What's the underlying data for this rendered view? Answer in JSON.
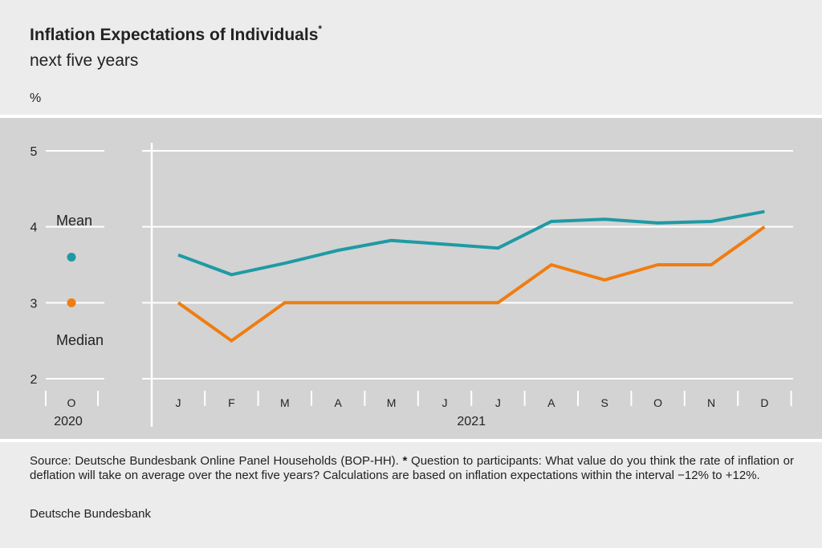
{
  "header": {
    "title": "Inflation Expectations of Individuals",
    "title_marker": "*",
    "subtitle": "next five years",
    "unit": "%"
  },
  "legend": {
    "mean_label": "Mean",
    "median_label": "Median"
  },
  "footnote": {
    "source": "Source: Deutsche Bundesbank Online Panel Households (BOP-HH).",
    "marker": "*",
    "text": "Question to participants: What value do you think the rate of inflation or deflation will take on average over the next five years? Calculations are based on inflation expectations within the interval −12% to +12%."
  },
  "credit": "Deutsche Bundesbank",
  "colors": {
    "mean": "#1f9aa5",
    "median": "#ef7d11",
    "panel": "#d3d3d3",
    "grid": "#ffffff"
  },
  "chart_data": {
    "type": "line",
    "title": "Inflation Expectations of Individuals",
    "subtitle": "next five years",
    "ylabel": "%",
    "ylim": [
      2,
      5
    ],
    "yticks": [
      2,
      3,
      4,
      5
    ],
    "grid": true,
    "years": [
      {
        "label": "2020",
        "months": [
          "O"
        ]
      },
      {
        "label": "2021",
        "months": [
          "J",
          "F",
          "M",
          "A",
          "M",
          "J",
          "J",
          "A",
          "S",
          "O",
          "N",
          "D"
        ]
      }
    ],
    "categories": [
      "J",
      "F",
      "M",
      "A",
      "M",
      "J",
      "J",
      "A",
      "S",
      "O",
      "N",
      "D"
    ],
    "series": [
      {
        "name": "Mean",
        "color": "#1f9aa5",
        "values": [
          3.63,
          3.37,
          3.52,
          3.69,
          3.82,
          3.77,
          3.72,
          4.07,
          4.1,
          4.05,
          4.07,
          4.2
        ]
      },
      {
        "name": "Median",
        "color": "#ef7d11",
        "values": [
          3.0,
          2.5,
          3.0,
          3.0,
          3.0,
          3.0,
          3.0,
          3.5,
          3.3,
          3.5,
          3.5,
          4.0
        ]
      }
    ],
    "standalone_points": [
      {
        "series": "Mean",
        "month": "O",
        "year": "2020",
        "value": 3.6
      },
      {
        "series": "Median",
        "month": "O",
        "year": "2020",
        "value": 3.0
      }
    ]
  }
}
